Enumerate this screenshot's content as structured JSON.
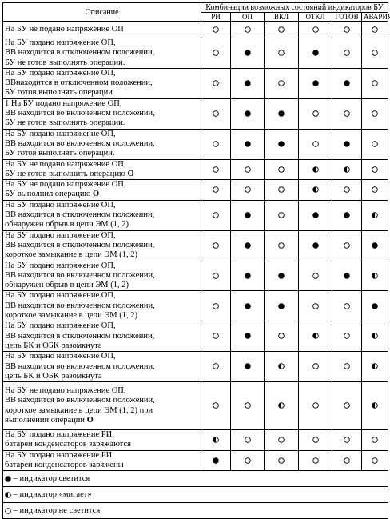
{
  "header": {
    "description_label": "Описание",
    "group_label": "Комбинации возможных состояний индикаторов БУ",
    "columns": [
      "РИ",
      "ОП",
      "ВКЛ",
      "ОТКЛ",
      "ГОТОВ",
      "АВАРИЯ"
    ]
  },
  "rows": [
    {
      "lines": [
        "На БУ не подано напряжение ОП"
      ],
      "states": [
        "off",
        "off",
        "off",
        "off",
        "off",
        "off"
      ]
    },
    {
      "lines": [
        "На БУ подано напряжение ОП,",
        "ВВ находится в отключенном положении,",
        "БУ не готов выполнять операции."
      ],
      "states": [
        "off",
        "on",
        "off",
        "on",
        "off",
        "off"
      ]
    },
    {
      "lines": [
        "На БУ подано напряжение ОП,",
        "ВВнаходится в отключенном положении,",
        "БУ готов выполнять операции."
      ],
      "states": [
        "off",
        "on",
        "off",
        "on",
        "on",
        "off"
      ]
    },
    {
      "lines": [
        "1    На БУ подано напряжение ОП,",
        "ВВ находится во включенном положении,",
        "БУ не готов выполнять операции."
      ],
      "states": [
        "off",
        "on",
        "on",
        "off",
        "off",
        "off"
      ]
    },
    {
      "lines": [
        "На БУ подано напряжение ОП,",
        "ВВ находится во включенном положении,",
        "БУ готов выполнять операции."
      ],
      "states": [
        "off",
        "on",
        "on",
        "off",
        "on",
        "off"
      ]
    },
    {
      "lines": [
        "На БУ не подано напряжение ОП,",
        "БУ не готов выполнить операцию",
        "О"
      ],
      "states": [
        "off",
        "off",
        "off",
        "blink",
        "blink",
        "off"
      ],
      "bold_last_inline": true
    },
    {
      "lines": [
        "На БУ не подано напряжение ОП,",
        "БУ выполнил операцию",
        "О"
      ],
      "states": [
        "off",
        "off",
        "off",
        "blink",
        "off",
        "off"
      ],
      "bold_last_inline": true
    },
    {
      "lines": [
        "На БУ подано напряжение ОП,",
        "ВВ находится в отключенном положении,",
        "обнаружен обрыв в цепи ЭМ (1, 2)"
      ],
      "states": [
        "off",
        "on",
        "off",
        "on",
        "on",
        "blink"
      ]
    },
    {
      "lines": [
        "На БУ подано напряжение ОП,",
        "ВВ находится в отключенном положении,",
        "короткое замыкание в цепи ЭМ (1, 2)"
      ],
      "states": [
        "off",
        "on",
        "off",
        "on",
        "off",
        "on"
      ]
    },
    {
      "lines": [
        "На БУ подано напряжение ОП,",
        "ВВ находится во включенном положении,",
        "обнаружен обрыв в цепи ЭМ (1, 2)"
      ],
      "states": [
        "off",
        "on",
        "on",
        "off",
        "on",
        "blink"
      ]
    },
    {
      "lines": [
        "На БУ подано напряжение ОП,",
        "ВВ находится во включенном положении,",
        "короткое замыкание в цепи ЭМ (1, 2)"
      ],
      "states": [
        "off",
        "on",
        "on",
        "off",
        "off",
        "on"
      ]
    },
    {
      "lines": [
        "На БУ подано напряжение ОП,",
        "ВВ находится в отключенном положении,",
        "цепь БК и ОБК разомкнута"
      ],
      "states": [
        "off",
        "on",
        "off",
        "blink",
        "off",
        "blink"
      ]
    },
    {
      "lines": [
        "На БУ подано напряжение ОП,",
        "ВВ находится во включенном положении,",
        "цепь БК и ОБК разомкнута"
      ],
      "states": [
        "off",
        "on",
        "blink",
        "off",
        "off",
        "blink"
      ]
    },
    {
      "lines": [
        "На БУ не подано напряжение ОП,",
        "ВВ находится во включенном положении,",
        "короткое замыкание в цепи ЭМ (1, 2) при",
        "выполнении операции",
        "О"
      ],
      "states": [
        "off",
        "off",
        "blink",
        "off",
        "off",
        "blink"
      ],
      "bold_last_inline": true
    },
    {
      "lines": [
        "На БУ подано напряжение РИ,",
        "батареи конденсаторов заряжаются"
      ],
      "states": [
        "blink",
        "off",
        "off",
        "off",
        "off",
        "off"
      ]
    },
    {
      "lines": [
        "На БУ подано напряжение РИ,",
        "батареи конденсаторов заряжены"
      ],
      "states": [
        "on",
        "off",
        "off",
        "off",
        "off",
        "off"
      ]
    }
  ],
  "legend": [
    {
      "icon": "on",
      "text": "– индикатор светится"
    },
    {
      "icon": "blink",
      "text": "– индикатор «мигает»"
    },
    {
      "icon": "off",
      "text": "– индикатор не светится"
    }
  ]
}
